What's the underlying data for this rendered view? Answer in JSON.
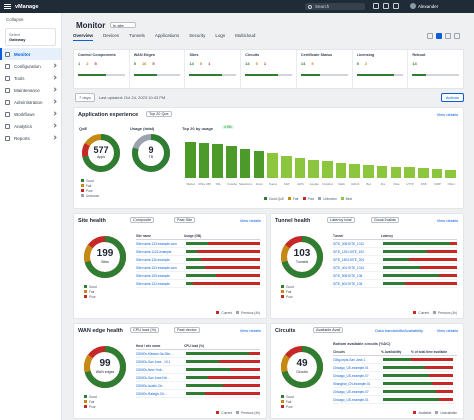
{
  "topbar": {
    "brand": "vManage",
    "search": "Search",
    "user": "Alexander"
  },
  "sidebar": {
    "collapse": "Collapse",
    "site_label": "Select",
    "site_name": "Gateway",
    "items": [
      {
        "label": "Monitor",
        "active": true
      },
      {
        "label": "Configuration"
      },
      {
        "label": "Tools"
      },
      {
        "label": "Maintenance"
      },
      {
        "label": "Administration"
      },
      {
        "label": "Workflows"
      },
      {
        "label": "Analytics"
      },
      {
        "label": "Reports"
      }
    ]
  },
  "header": {
    "title": "Monitor",
    "selector": "In site"
  },
  "tabs": [
    "Overview",
    "Devices",
    "Tunnels",
    "Applications",
    "Security",
    "Logs",
    "Multicloud"
  ],
  "stats": [
    {
      "title": "Control Components",
      "nums": [
        "1",
        "2",
        "5"
      ],
      "fill": 0.6
    },
    {
      "title": "WAN Edges",
      "nums": [
        "5",
        "16",
        "5"
      ],
      "fill": 0.5
    },
    {
      "title": "Sites",
      "nums": [
        "14",
        "5",
        "1"
      ],
      "fill": 0.7
    },
    {
      "title": "Circuits",
      "nums": [
        "14",
        "5",
        "1"
      ],
      "fill": 0.7
    },
    {
      "title": "Certificate Status",
      "nums": [
        "14",
        "5"
      ],
      "fill": 0.4
    },
    {
      "title": "Licensing",
      "nums": [
        "5",
        "2"
      ],
      "fill": 0.8
    },
    {
      "title": "Reboot",
      "nums": [
        "14"
      ],
      "fill": 0.3
    }
  ],
  "filter": {
    "range": "7 days",
    "updated": "Last updated: Oct 24, 2023 10:43 PM",
    "actions": "Actions"
  },
  "app_exp": {
    "title": "Application experience",
    "drop": "Top 20 Qoe",
    "view": "View details",
    "qoe_title": "QoE",
    "qoe_value": "577",
    "qoe_unit": "Apps",
    "usage_title": "Usage (total)",
    "usage_value": "9",
    "usage_unit": "TB",
    "top_title": "Top 20 by usage",
    "top_badge": "4 KB",
    "legend": [
      "Good",
      "Fair",
      "Poor",
      "Unknown"
    ],
    "bar_legend": [
      "Good QoE",
      "Fair",
      "Poor",
      "Unknown",
      "Best"
    ]
  },
  "site_health": {
    "title": "Site health",
    "drop1": "Composite",
    "drop2": "Past Site",
    "view": "View details",
    "value": "199",
    "unit": "Sites",
    "col1": "Site name",
    "col2": "Usage (GB)",
    "rows": [
      "Site-name-123.example.com",
      "Site-name-1122.example",
      "Site-name-12k-example",
      "Site-name-103.example.com",
      "Site-name-105.example",
      "Site-name-122.example"
    ],
    "fills": [
      0.3,
      0.15,
      0.2,
      0.25,
      0.4,
      0.1
    ],
    "legend": [
      "Good",
      "Fair",
      "Poor"
    ],
    "foot": [
      "Current",
      "Previous (4h)"
    ]
  },
  "tunnel_health": {
    "title": "Tunnel health",
    "drop1": "Latency total",
    "drop2": "Good/Jvalids",
    "view": "View details",
    "value": "103",
    "unit": "Tunnels",
    "col1": "Tunnel",
    "col2": "Latency",
    "rows": [
      "SITE_005:SITE_1012",
      "SITE_1201:SITE_192",
      "SITE_1503:SITE_204",
      "SITE_401:SITE_1014",
      "SITE_505:SITE_108",
      "SITE_602:SITE_105"
    ],
    "fills": [
      0.9,
      0.6,
      0.35,
      0.5,
      0.75,
      0.3
    ],
    "legend": [
      "Good",
      "Fair",
      "Poor"
    ],
    "foot": [
      "Current",
      "Previous (4h)"
    ]
  },
  "wan_edge": {
    "title": "WAN edge health",
    "drop1": "CPU load (%)",
    "drop2": "Past device",
    "view": "View details",
    "value": "99",
    "unit": "WAN edges",
    "col1": "Host / site name",
    "col2": "CPU load (%)",
    "rows": [
      "C8000v-Mission-3a-Site-...",
      "C8000v-San Jose - 10.1",
      "C8000v-New York...",
      "C8000v-San Jose-NA...",
      "C8000v-Austin-Ctr...",
      "C8000v-Raleigh-Ctr..."
    ],
    "fills": [
      0.85,
      0.45,
      0.6,
      0.3,
      0.5,
      0.25
    ],
    "legend": [
      "Good",
      "Fair",
      "Poor"
    ],
    "foot": [
      "Current",
      "Previous (4h)"
    ]
  },
  "circuits": {
    "title": "Circuits",
    "drop1": "Available Avail",
    "link": "Data bandwidth/Availability",
    "view": "View details",
    "value": "49",
    "unit": "Circuits",
    "sub": "Bottom available circuits (%DC)",
    "col1": "Circuits",
    "col2": "% Availability",
    "col3": "% of total time available",
    "rows": [
      "C8kg-mpls-San Jose-1",
      "Chicago_US-example-01",
      "Chicago_US-example-07",
      "Shanghai_CN-example-01",
      "Chicago_US-example-07",
      "Chicago_US-example-01"
    ],
    "fills": [
      0.4,
      0.6,
      0.65,
      0.7,
      0.75,
      0.8
    ],
    "legend": [
      "Good",
      "Fair",
      "Poor"
    ],
    "foot": [
      "Available",
      "Unavailable"
    ]
  },
  "chart_data": {
    "type": "bar",
    "title": "Top 20 by usage",
    "categories": [
      "Webex",
      "Office 365",
      "SSL",
      "Youtube",
      "Salesforce",
      "Zoom",
      "Teams",
      "SAP",
      "AWS",
      "Google",
      "Dropbox",
      "Slack",
      "Github",
      "Box",
      "Jira",
      "Okta",
      "HTTP",
      "DNS",
      "ICMP",
      "Other"
    ],
    "values": [
      82,
      80,
      78,
      72,
      66,
      62,
      56,
      50,
      46,
      40,
      38,
      35,
      32,
      30,
      28,
      26,
      24,
      22,
      20,
      18
    ],
    "ylim": [
      0,
      100
    ]
  },
  "colors": {
    "good": "#2e7d32",
    "fair": "#c68a12",
    "poor": "#c62828",
    "unknown": "#9ca3af",
    "accent": "#0b5ed7"
  }
}
